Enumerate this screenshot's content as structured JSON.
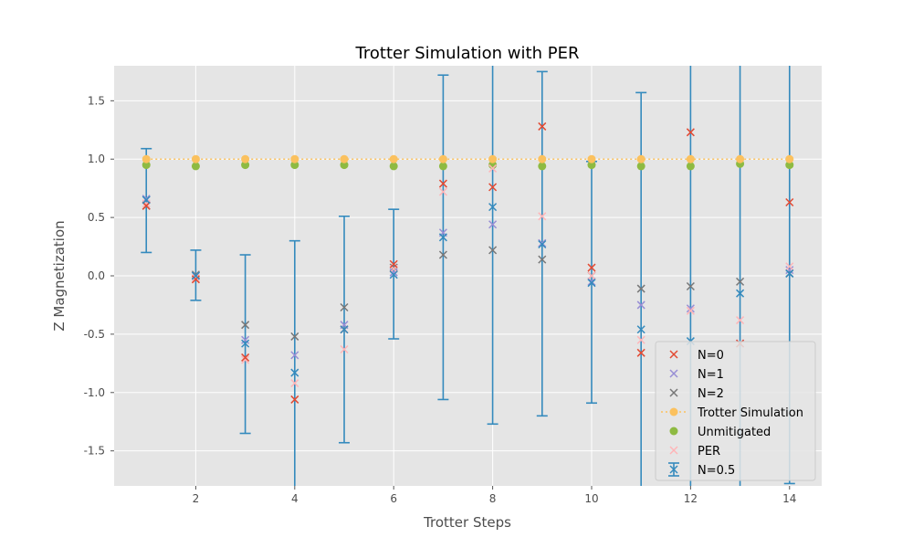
{
  "chart_data": {
    "type": "scatter",
    "title": "Trotter Simulation with PER",
    "xlabel": "Trotter Steps",
    "ylabel": "Z Magnetization",
    "xlim": [
      0.35,
      14.65
    ],
    "ylim": [
      -1.8,
      1.8
    ],
    "xticks": [
      2,
      4,
      6,
      8,
      10,
      12,
      14
    ],
    "yticks": [
      -1.5,
      -1.0,
      -0.5,
      0.0,
      0.5,
      1.0,
      1.5
    ],
    "grid": true,
    "legend_position": "lower-right",
    "x": [
      1,
      2,
      3,
      4,
      5,
      6,
      7,
      8,
      9,
      10,
      11,
      12,
      13,
      14
    ],
    "series": [
      {
        "name": "N=0",
        "marker": "x",
        "color": "#E24A33",
        "values": [
          0.6,
          -0.03,
          -0.7,
          -1.06,
          -0.46,
          0.1,
          0.79,
          0.76,
          1.28,
          0.07,
          -0.66,
          1.23,
          -0.58,
          0.63
        ]
      },
      {
        "name": "N=1",
        "marker": "x",
        "color": "#988ED5",
        "values": [
          0.66,
          0.0,
          -0.55,
          -0.68,
          -0.42,
          0.03,
          0.37,
          0.44,
          0.28,
          -0.05,
          -0.25,
          -0.28,
          -0.58,
          0.05
        ]
      },
      {
        "name": "N=2",
        "marker": "x",
        "color": "#777777",
        "values": [
          0.6,
          0.01,
          -0.42,
          -0.52,
          -0.27,
          0.07,
          0.18,
          0.22,
          0.14,
          0.0,
          -0.11,
          -0.09,
          -0.05,
          0.02
        ]
      },
      {
        "name": "Trotter Simulation",
        "marker": "o",
        "color": "#FBC15E",
        "line": "dotted",
        "values": [
          1.0,
          1.0,
          1.0,
          1.0,
          1.0,
          1.0,
          1.0,
          1.0,
          1.0,
          1.0,
          1.0,
          1.0,
          1.0,
          1.0
        ]
      },
      {
        "name": "Unmitigated",
        "marker": "o",
        "color": "#8EBA42",
        "values": [
          0.95,
          0.94,
          0.95,
          0.95,
          0.95,
          0.94,
          0.94,
          0.95,
          0.94,
          0.95,
          0.94,
          0.94,
          0.96,
          0.95
        ]
      },
      {
        "name": "PER",
        "marker": "x",
        "color": "#FFB5B8",
        "values": [
          0.62,
          -0.02,
          -0.72,
          -0.92,
          -0.63,
          0.06,
          0.72,
          0.92,
          0.51,
          0.0,
          -0.55,
          -0.3,
          -0.38,
          0.08
        ]
      },
      {
        "name": "N=0.5",
        "marker": "x",
        "color": "#348ABD",
        "errorbar": true,
        "values": [
          0.65,
          0.0,
          -0.58,
          -0.83,
          -0.46,
          0.01,
          0.33,
          0.59,
          0.27,
          -0.06,
          -0.46,
          -0.56,
          -0.15,
          0.02
        ],
        "err_lower": [
          0.2,
          -0.21,
          -1.35,
          -1.95,
          -1.43,
          -0.54,
          -1.06,
          -1.27,
          -1.2,
          -1.09,
          -2.5,
          -2.5,
          -2.5,
          -1.78
        ],
        "err_upper": [
          1.09,
          0.22,
          0.18,
          0.3,
          0.51,
          0.57,
          1.72,
          2.5,
          1.75,
          0.98,
          1.57,
          2.5,
          2.5,
          2.5
        ]
      }
    ],
    "legend_order": [
      "N=0",
      "N=1",
      "N=2",
      "Trotter Simulation",
      "Unmitigated",
      "PER",
      "N=0.5"
    ]
  }
}
